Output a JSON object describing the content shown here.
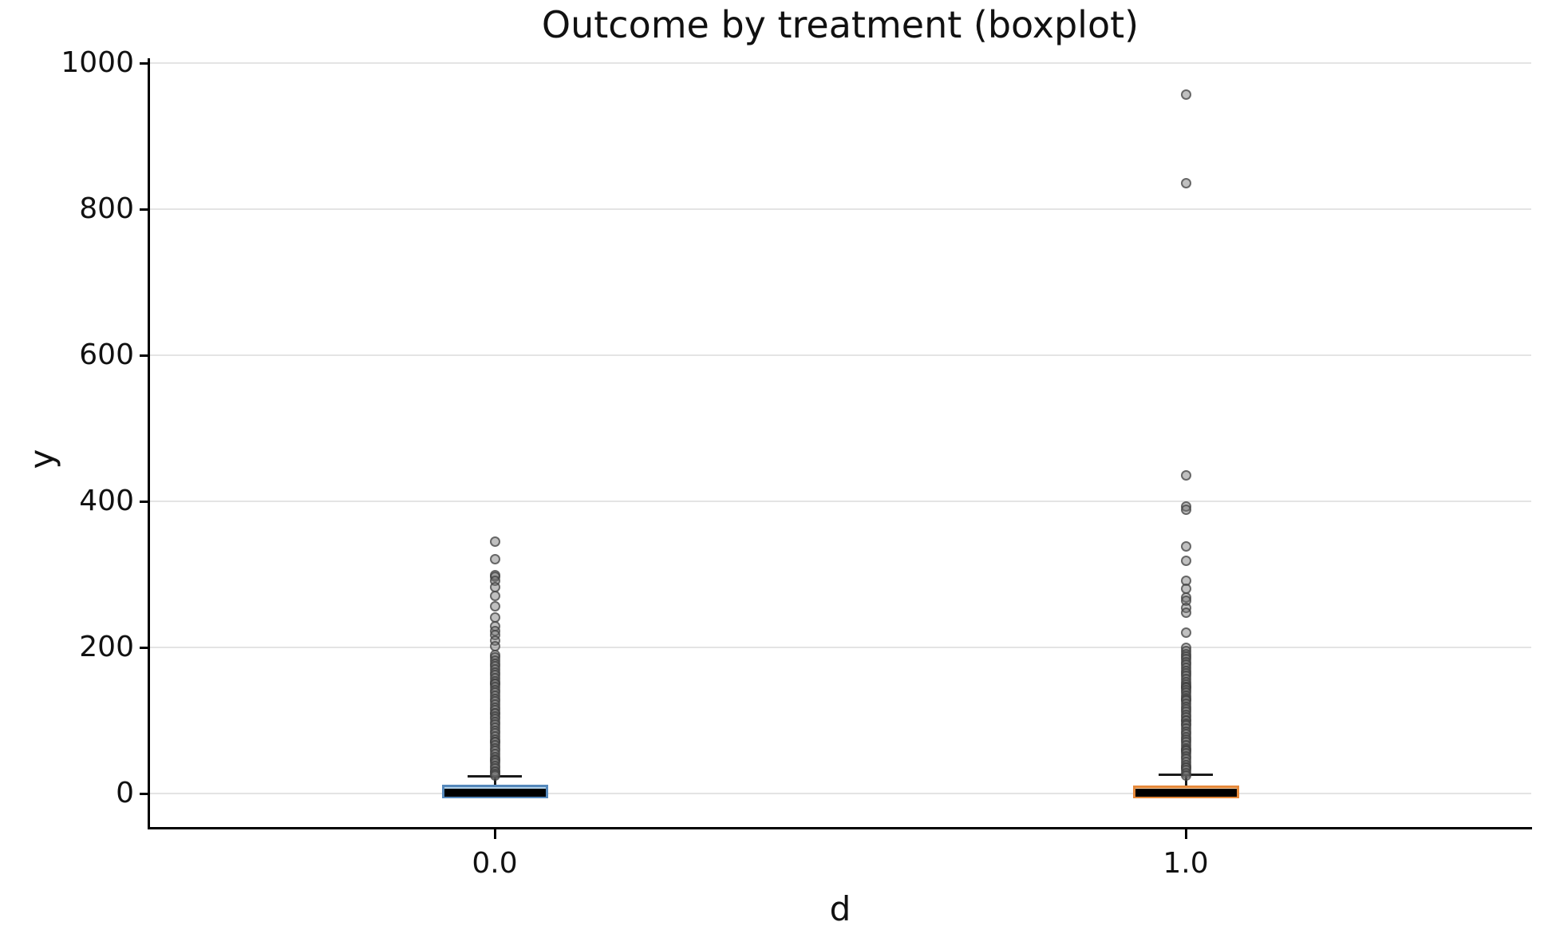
{
  "chart_data": {
    "type": "boxplot",
    "title": "Outcome by treatment (boxplot)",
    "xlabel": "d",
    "ylabel": "y",
    "categories": [
      "0.0",
      "1.0"
    ],
    "yticks": [
      0,
      200,
      400,
      600,
      800,
      1000
    ],
    "ylim": [
      -47,
      1021
    ],
    "grid": "horizontal-light-gray",
    "legend": "none",
    "colors": {
      "grid": "#e4e4e4",
      "axis": "#000000",
      "flier_fill": "rgba(115,115,115,0.45)",
      "flier_edge": "rgba(55,55,55,0.65)"
    },
    "series": [
      {
        "name": "0.0",
        "q1": 0.4,
        "median": 1.5,
        "q3": 11,
        "whisker_low": 0,
        "whisker_high": 23,
        "box_fill": "#B5D3EA",
        "box_edge": "#5588BB",
        "outliers": [
          345,
          321,
          299,
          297,
          291,
          282,
          270,
          256,
          241,
          229,
          222,
          217,
          209,
          202,
          190,
          186,
          182,
          178,
          174,
          170,
          166,
          162,
          158,
          154,
          150,
          150,
          146,
          142,
          138,
          134,
          130,
          126,
          122,
          118,
          114,
          110,
          110,
          106,
          102,
          98,
          94,
          90,
          86,
          82,
          78,
          74,
          70,
          70,
          66,
          62,
          58,
          54,
          50,
          46,
          45,
          42,
          38,
          34,
          30,
          30,
          27,
          25
        ]
      },
      {
        "name": "1.0",
        "q1": 0.4,
        "median": 1.5,
        "q3": 10,
        "whisker_low": 0,
        "whisker_high": 26,
        "box_fill": "#FBD0A0",
        "box_edge": "#E5893B",
        "outliers": [
          957,
          836,
          435,
          393,
          389,
          338,
          319,
          291,
          280,
          268,
          264,
          254,
          247,
          220,
          199,
          195,
          191,
          187,
          184,
          180,
          176,
          172,
          168,
          165,
          161,
          157,
          153,
          149,
          146,
          146,
          145,
          142,
          138,
          134,
          131,
          128,
          127,
          123,
          119,
          115,
          112,
          108,
          104,
          100,
          100,
          96,
          93,
          89,
          85,
          81,
          77,
          74,
          70,
          66,
          62,
          60,
          58,
          55,
          51,
          47,
          43,
          39,
          36,
          35,
          32,
          28,
          25
        ]
      }
    ]
  }
}
